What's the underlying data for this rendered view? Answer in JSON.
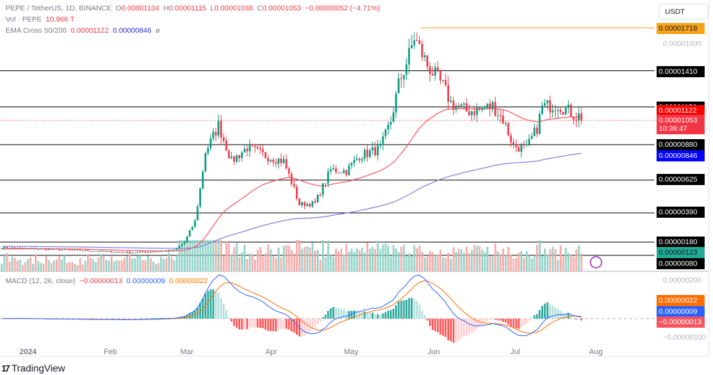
{
  "header": {
    "symbol": "PEPE / TetherUS, 1D, BINANCE",
    "o_label": "O",
    "o": "0.00001104",
    "h_label": "H",
    "h": "0.00001115",
    "l_label": "L",
    "l": "0.00001038",
    "c_label": "C",
    "c": "0.00001053",
    "change": "−0.00000052 (−4.71%)"
  },
  "vol": {
    "label": "Vol · PEPE",
    "value": "10.966 T"
  },
  "ema": {
    "label": "EMA Cross 50/200",
    "ema50": "0.00001122",
    "ema200": "0.00000846",
    "ghost": "ø"
  },
  "macd": {
    "label": "MACD (12, 26, close)",
    "hist": "−0.00000013",
    "macd": "0.00000009",
    "signal": "0.00000022"
  },
  "currency": "USDT",
  "price_tags": [
    {
      "text": "0.00001718",
      "color": "#f7a21b",
      "tcolor": "#131722"
    },
    {
      "text": "0.00001410",
      "color": "#000000"
    },
    {
      "text": "0.00001150",
      "color": "#000000"
    },
    {
      "text": "0.00001122",
      "color": "#ff0000"
    },
    {
      "text": "0.00001053",
      "color": "#f23645",
      "countdown": "10:38:47"
    },
    {
      "text": "0.00000880",
      "color": "#000000"
    },
    {
      "text": "0.00000846",
      "color": "#0000ff"
    },
    {
      "text": "0.00000625",
      "color": "#000000"
    },
    {
      "text": "0.00000390",
      "color": "#000000"
    },
    {
      "text": "0.00000180",
      "color": "#000000"
    },
    {
      "text": "0.00000123",
      "color": "#22ab94",
      "tcolor": "#131722"
    },
    {
      "text": "0.00000080",
      "color": "#000000"
    },
    {
      "text": "0.00000022",
      "color": "#ff6d00"
    },
    {
      "text": "0.00000009",
      "color": "#2962ff"
    },
    {
      "text": "−0.00000013",
      "color": "#f7525f"
    }
  ],
  "axis_labels": {
    "p1600": "0.00001600",
    "m200": "0.00000200",
    "m_100": "−0.00000100"
  },
  "dates": [
    "2024",
    "Feb",
    "Mar",
    "Apr",
    "May",
    "Jun",
    "Jul",
    "Aug"
  ],
  "brand": "TradingView",
  "colors": {
    "up": "#089981",
    "down": "#f23645",
    "ema50": "#f7525f",
    "ema200": "#7e7ee0",
    "macd": "#2962ff",
    "signal": "#ff6d00"
  },
  "horizontal_levels": [
    1.718e-05,
    1.41e-05,
    1.15e-05,
    8.8e-06,
    6.25e-06,
    3.9e-06,
    1.8e-06,
    8e-07
  ],
  "chart_data": {
    "type": "candlestick",
    "interval": "1D",
    "approx_close_keypoints_1e-8": [
      [
        "2023-12-22",
        140
      ],
      [
        "2024-01-15",
        125
      ],
      [
        "2024-02-10",
        105
      ],
      [
        "2024-02-26",
        120
      ],
      [
        "2024-03-01",
        180
      ],
      [
        "2024-03-05",
        330
      ],
      [
        "2024-03-07",
        560
      ],
      [
        "2024-03-09",
        830
      ],
      [
        "2024-03-11",
        900
      ],
      [
        "2024-03-14",
        1020
      ],
      [
        "2024-03-19",
        760
      ],
      [
        "2024-03-25",
        860
      ],
      [
        "2024-04-01",
        800
      ],
      [
        "2024-04-08",
        760
      ],
      [
        "2024-04-12",
        560
      ],
      [
        "2024-04-14",
        450
      ],
      [
        "2024-04-20",
        460
      ],
      [
        "2024-04-26",
        700
      ],
      [
        "2024-05-02",
        690
      ],
      [
        "2024-05-07",
        800
      ],
      [
        "2024-05-15",
        850
      ],
      [
        "2024-05-19",
        1050
      ],
      [
        "2024-05-22",
        1310
      ],
      [
        "2024-05-26",
        1520
      ],
      [
        "2024-05-28",
        1650
      ],
      [
        "2024-06-02",
        1450
      ],
      [
        "2024-06-08",
        1300
      ],
      [
        "2024-06-11",
        1180
      ],
      [
        "2024-06-17",
        1120
      ],
      [
        "2024-06-22",
        1130
      ],
      [
        "2024-06-27",
        1160
      ],
      [
        "2024-07-01",
        1060
      ],
      [
        "2024-07-05",
        870
      ],
      [
        "2024-07-10",
        850
      ],
      [
        "2024-07-14",
        1000
      ],
      [
        "2024-07-16",
        1150
      ],
      [
        "2024-07-22",
        1170
      ],
      [
        "2024-07-27",
        1110
      ],
      [
        "2024-07-31",
        1053
      ]
    ]
  }
}
